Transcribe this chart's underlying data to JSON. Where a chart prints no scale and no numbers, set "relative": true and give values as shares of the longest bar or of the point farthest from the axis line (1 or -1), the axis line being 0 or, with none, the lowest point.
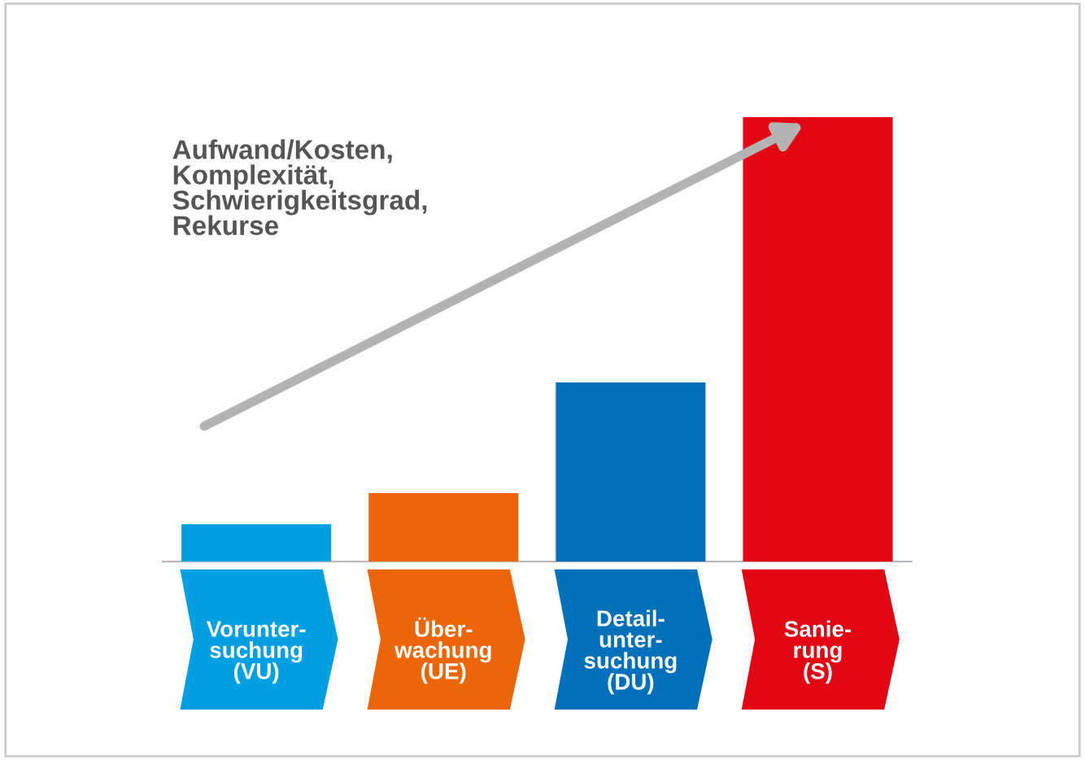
{
  "chart_data": {
    "type": "bar",
    "relative": true,
    "categories": [
      "Vorunter-\nsuchung\n(VU)",
      "Über-\nwachung\n(UE)",
      "Detail-\nunter-\nsuchung\n(DU)",
      "Sanie-\nrung\n(S)"
    ],
    "values": [
      0.084,
      0.154,
      0.403,
      1
    ],
    "colors": [
      "#00a0e3",
      "#ec6608",
      "#0070ba",
      "#e30613"
    ],
    "annotations": [
      "Aufwand/Kosten,\nKomplexität,\nSchwierigkeitsgrad,\nRekurse"
    ],
    "grid": false,
    "legend": false
  }
}
